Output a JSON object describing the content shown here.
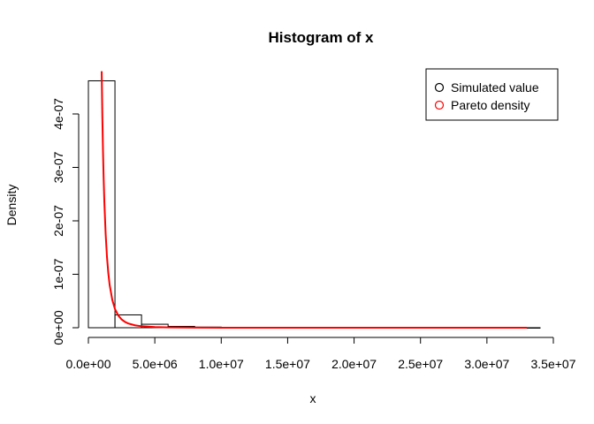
{
  "chart_data": {
    "type": "histogram",
    "title": "Histogram of x",
    "xlabel": "x",
    "ylabel": "Density",
    "xlim": [
      0,
      35000000
    ],
    "ylim": [
      0,
      4.8e-07
    ],
    "x_ticks": [
      0,
      5000000,
      10000000,
      15000000,
      20000000,
      25000000,
      30000000,
      35000000
    ],
    "x_tick_labels": [
      "0.0e+00",
      "5.0e+06",
      "1.0e+07",
      "1.5e+07",
      "2.0e+07",
      "2.5e+07",
      "3.0e+07",
      "3.5e+07"
    ],
    "y_ticks": [
      0,
      1e-07,
      2e-07,
      3e-07,
      4e-07
    ],
    "y_tick_labels": [
      "0e+00",
      "1e-07",
      "2e-07",
      "3e-07",
      "4e-07"
    ],
    "bins": [
      {
        "start": 0,
        "end": 2000000,
        "density": 4.62e-07
      },
      {
        "start": 2000000,
        "end": 4000000,
        "density": 2.4e-08
      },
      {
        "start": 4000000,
        "end": 6000000,
        "density": 6.5e-09
      },
      {
        "start": 6000000,
        "end": 8000000,
        "density": 2.5e-09
      },
      {
        "start": 8000000,
        "end": 10000000,
        "density": 1.2e-09
      },
      {
        "start": 10000000,
        "end": 12000000,
        "density": 7e-10
      },
      {
        "start": 12000000,
        "end": 14000000,
        "density": 4e-10
      },
      {
        "start": 14000000,
        "end": 16000000,
        "density": 3e-10
      },
      {
        "start": 16000000,
        "end": 18000000,
        "density": 2e-10
      },
      {
        "start": 18000000,
        "end": 20000000,
        "density": 1.5e-10
      },
      {
        "start": 20000000,
        "end": 22000000,
        "density": 1e-10
      },
      {
        "start": 22000000,
        "end": 24000000,
        "density": 1e-10
      },
      {
        "start": 24000000,
        "end": 26000000,
        "density": 5e-11
      },
      {
        "start": 26000000,
        "end": 28000000,
        "density": 5e-11
      },
      {
        "start": 28000000,
        "end": 30000000,
        "density": 5e-11
      },
      {
        "start": 30000000,
        "end": 32000000,
        "density": 5e-11
      },
      {
        "start": 32000000,
        "end": 34000000,
        "density": 5e-11
      }
    ],
    "series": [
      {
        "name": "Simulated value",
        "color": "#000000",
        "legend_marker": "open-circle"
      },
      {
        "name": "Pareto density",
        "color": "#ff0000",
        "legend_marker": "open-circle",
        "curve": {
          "x": [
            1000000,
            1050000,
            1100000,
            1150000,
            1200000,
            1300000,
            1400000,
            1500000,
            1600000,
            1800000,
            2000000,
            2250000,
            2500000,
            2750000,
            3000000,
            3500000,
            4000000,
            5000000,
            6000000,
            7000000,
            8000000,
            10000000,
            12000000,
            15000000,
            20000000,
            25000000,
            30000000,
            33000000
          ],
          "y": [
            4.8e-07,
            3.95e-07,
            3.3e-07,
            2.78e-07,
            2.36e-07,
            1.75e-07,
            1.32e-07,
            1.02e-07,
            8e-08,
            5.2e-08,
            3.5e-08,
            2.28e-08,
            1.55e-08,
            1.1e-08,
            8e-09,
            4.6e-09,
            2.8e-09,
            1.2e-09,
            6e-10,
            3.4e-10,
            2.1e-10,
            9e-11,
            5e-11,
            2e-11,
            1e-11,
            5e-12,
            3e-12,
            2e-12
          ]
        }
      }
    ],
    "legend_position": "top-right",
    "grid": false
  }
}
